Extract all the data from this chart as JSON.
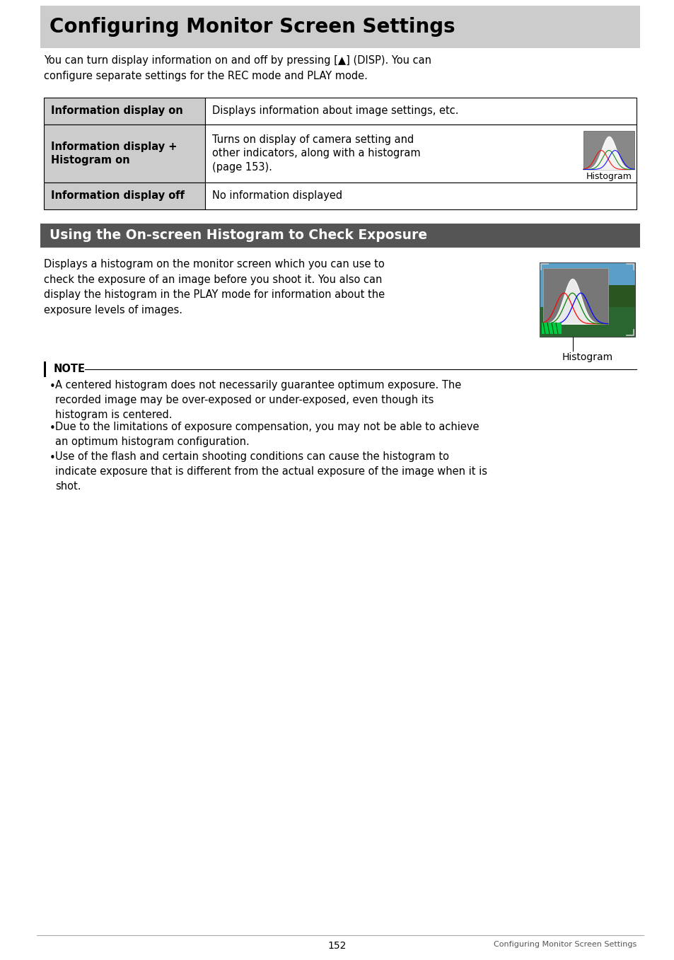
{
  "page_bg": "#ffffff",
  "title_bg": "#cccccc",
  "title_text": "Configuring Monitor Screen Settings",
  "title_color": "#000000",
  "title_fontsize": 20,
  "section2_bg": "#555555",
  "section2_text": "Using the On-screen Histogram to Check Exposure",
  "section2_color": "#ffffff",
  "section2_fontsize": 13.5,
  "intro_text": "You can turn display information on and off by pressing [▲] (DISP). You can\nconfigure separate settings for the REC mode and PLAY mode.",
  "body_fontsize": 10.5,
  "table_border": "#000000",
  "table_col1_bg": "#cccccc",
  "table_col2_bg": "#ffffff",
  "table_rows": [
    {
      "col1": "Information display on",
      "col2": "Displays information about image settings, etc.",
      "has_image": false
    },
    {
      "col1": "Information display +\nHistogram on",
      "col2": "Turns on display of camera setting and\nother indicators, along with a histogram\n(page 153).",
      "has_image": true,
      "image_label": "Histogram"
    },
    {
      "col1": "Information display off",
      "col2": "No information displayed",
      "has_image": false
    }
  ],
  "section2_body": "Displays a histogram on the monitor screen which you can use to\ncheck the exposure of an image before you shoot it. You also can\ndisplay the histogram in the PLAY mode for information about the\nexposure levels of images.",
  "note_title": "NOTE",
  "note_bullets": [
    "A centered histogram does not necessarily guarantee optimum exposure. The\nrecorded image may be over-exposed or under-exposed, even though its\nhistogram is centered.",
    "Due to the limitations of exposure compensation, you may not be able to achieve\nan optimum histogram configuration.",
    "Use of the flash and certain shooting conditions can cause the histogram to\nindicate exposure that is different from the actual exposure of the image when it is\nshot."
  ],
  "footer_page": "152",
  "footer_text": "Configuring Monitor Screen Settings",
  "footer_line_color": "#aaaaaa"
}
